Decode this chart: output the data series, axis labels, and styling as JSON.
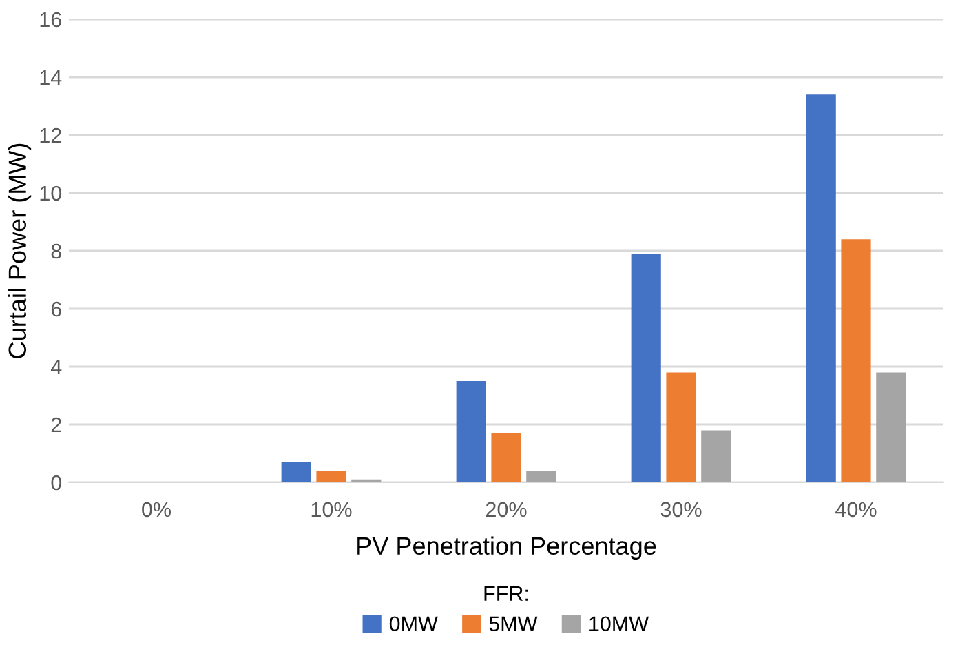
{
  "chart_data": {
    "type": "bar",
    "xlabel": "PV Penetration Percentage",
    "ylabel": "Curtail Power (MW)",
    "legend_title": "FFR:",
    "categories": [
      "0%",
      "10%",
      "20%",
      "30%",
      "40%"
    ],
    "series": [
      {
        "name": "0MW",
        "color": "#4472c4",
        "values": [
          0,
          0.7,
          3.5,
          7.9,
          13.4
        ]
      },
      {
        "name": "5MW",
        "color": "#ed7d31",
        "values": [
          0,
          0.4,
          1.7,
          3.8,
          8.4
        ]
      },
      {
        "name": "10MW",
        "color": "#a5a5a5",
        "values": [
          0,
          0.1,
          0.4,
          1.8,
          3.8
        ]
      }
    ],
    "ylim": [
      0,
      16
    ],
    "yticks": [
      0,
      2,
      4,
      6,
      8,
      10,
      12,
      14,
      16
    ],
    "grid": "y",
    "legend": "bottom"
  }
}
